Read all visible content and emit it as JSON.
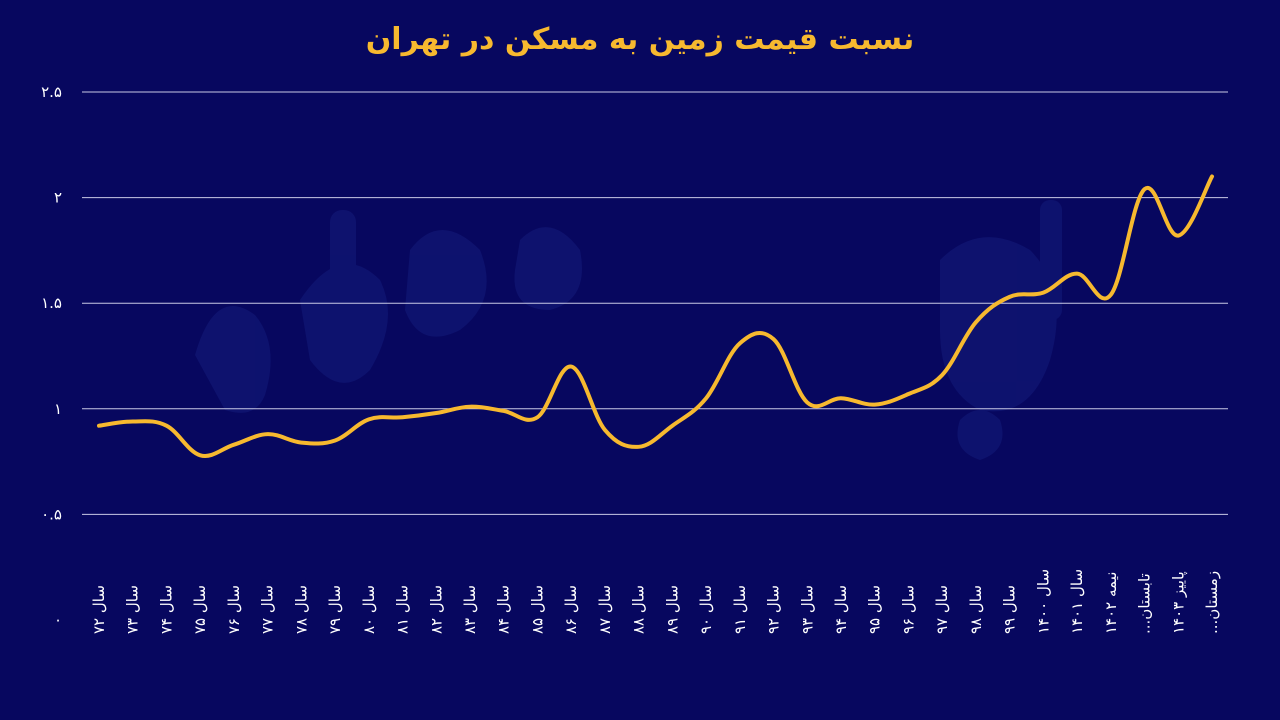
{
  "chart_data": {
    "type": "line",
    "title": "نسبت قیمت زمین به مسکن در تهران",
    "ylim": [
      0,
      2.5
    ],
    "yticks": [
      {
        "value": 0,
        "label": "۰"
      },
      {
        "value": 0.5,
        "label": "۰.۵"
      },
      {
        "value": 1,
        "label": "۱"
      },
      {
        "value": 1.5,
        "label": "۱.۵"
      },
      {
        "value": 2,
        "label": "۲"
      },
      {
        "value": 2.5,
        "label": "۲.۵"
      }
    ],
    "grid": true,
    "line_color": "#f7b92f",
    "categories": [
      "سال ۷۲",
      "سال ۷۳",
      "سال ۷۴",
      "سال ۷۵",
      "سال ۷۶",
      "سال ۷۷",
      "سال ۷۸",
      "سال ۷۹",
      "سال ۸۰",
      "سال ۸۱",
      "سال ۸۲",
      "سال ۸۳",
      "سال ۸۴",
      "سال ۸۵",
      "سال ۸۶",
      "سال ۸۷",
      "سال ۸۸",
      "سال ۸۹",
      "سال ۹۰",
      "سال ۹۱",
      "سال ۹۲",
      "سال ۹۳",
      "سال ۹۴",
      "سال ۹۵",
      "سال ۹۶",
      "سال ۹۷",
      "سال ۹۸",
      "سال ۹۹",
      "سال ۱۴۰۰",
      "سال ۱۴۰۱",
      "نیمه ۱۴۰۲",
      "تابستان...",
      "پاییز ۱۴۰۳",
      "زمستان..."
    ],
    "series": [
      {
        "values": [
          0.92,
          0.94,
          0.92,
          0.78,
          0.83,
          0.88,
          0.84,
          0.85,
          0.95,
          0.96,
          0.98,
          1.01,
          0.99,
          0.96,
          1.2,
          0.9,
          0.82,
          0.92,
          1.05,
          1.31,
          1.33,
          1.03,
          1.05,
          1.02,
          1.07,
          1.16,
          1.41,
          1.53,
          1.55,
          1.64,
          1.54,
          2.04,
          1.82,
          2.1
        ]
      }
    ]
  },
  "colors": {
    "background": "#07075f",
    "title": "#f7b92f",
    "line": "#f7b92f",
    "grid": "#c9c9e6",
    "text": "#ffffff"
  }
}
